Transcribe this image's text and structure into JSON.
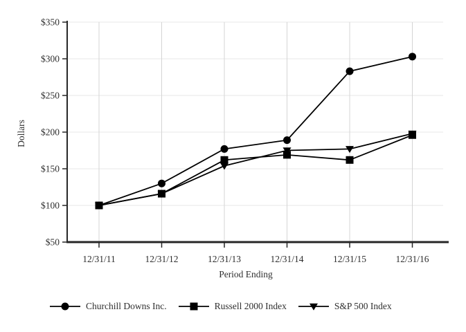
{
  "chart_data": {
    "type": "line",
    "title": "",
    "xlabel": "Period Ending",
    "ylabel": "Dollars",
    "x_categories": [
      "12/31/11",
      "12/31/12",
      "12/31/13",
      "12/31/14",
      "12/31/15",
      "12/31/16"
    ],
    "y_ticks": [
      50,
      100,
      150,
      200,
      250,
      300,
      350
    ],
    "y_tick_prefix": "$",
    "ylim": [
      50,
      350
    ],
    "grid": true,
    "legend_position": "bottom",
    "series": [
      {
        "name": "Churchill Downs Inc.",
        "marker": "circle",
        "color": "#000000",
        "values": [
          100,
          130,
          177,
          189,
          283,
          303
        ]
      },
      {
        "name": "Russell 2000 Index",
        "marker": "square",
        "color": "#000000",
        "values": [
          100,
          116,
          162,
          169,
          162,
          196
        ]
      },
      {
        "name": "S&P 500 Index",
        "marker": "triangle-down",
        "color": "#000000",
        "values": [
          100,
          116,
          154,
          175,
          177,
          198
        ]
      }
    ],
    "colors": {
      "line": "#000000",
      "axis": "#262626",
      "grid_horizontal": "#e7e7e7",
      "grid_vertical": "#d4d4d4",
      "text": "#2e2e2e",
      "background": "#ffffff"
    }
  }
}
